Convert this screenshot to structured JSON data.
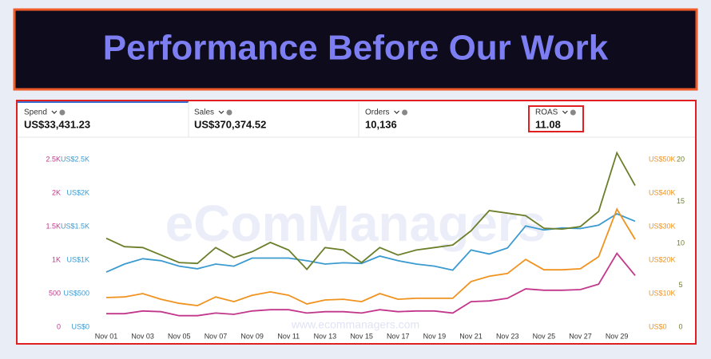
{
  "header": {
    "title": "Performance Before Our Work"
  },
  "watermark": {
    "brand": "eComManagers",
    "url": "www.ecommanagers.com"
  },
  "metrics": [
    {
      "label": "Spend",
      "value": "US$33,431.23"
    },
    {
      "label": "Sales",
      "value": "US$370,374.52"
    },
    {
      "label": "Orders",
      "value": "10,136"
    },
    {
      "label": "ROAS",
      "value": "11.08"
    }
  ],
  "chart_data": {
    "type": "line",
    "categories": [
      "Nov 01",
      null,
      "Nov 03",
      null,
      "Nov 05",
      null,
      "Nov 07",
      null,
      "Nov 09",
      null,
      "Nov 11",
      null,
      "Nov 13",
      null,
      "Nov 15",
      null,
      "Nov 17",
      null,
      "Nov 19",
      null,
      "Nov 21",
      null,
      "Nov 23",
      null,
      "Nov 25",
      null,
      "Nov 27",
      null,
      "Nov 29",
      null
    ],
    "series": [
      {
        "color": "#3b9ad0",
        "axis": "y3",
        "values": [
          820,
          940,
          1020,
          990,
          910,
          870,
          940,
          910,
          1030,
          1030,
          1030,
          990,
          940,
          960,
          950,
          1060,
          990,
          940,
          910,
          850,
          1150,
          1090,
          1180,
          1510,
          1450,
          1480,
          1470,
          1520,
          1690,
          1580
        ]
      },
      {
        "color": "#6b7f2a",
        "axis": "y4",
        "values": [
          10.6,
          9.6,
          9.5,
          8.6,
          7.7,
          7.6,
          9.5,
          8.3,
          9.0,
          10.1,
          9.2,
          6.9,
          9.5,
          9.2,
          7.7,
          9.5,
          8.6,
          9.2,
          9.5,
          9.8,
          11.5,
          13.9,
          13.6,
          13.3,
          11.8,
          11.7,
          12.0,
          13.8,
          20.8,
          16.9
        ]
      },
      {
        "color": "#f0931e",
        "axis": "y2",
        "values": [
          8800,
          9000,
          10000,
          8300,
          7100,
          6400,
          9000,
          7600,
          9500,
          10500,
          9500,
          6900,
          8100,
          8300,
          7600,
          10000,
          8300,
          8600,
          8600,
          8600,
          13600,
          15200,
          16000,
          20200,
          17100,
          17100,
          17400,
          21000,
          35200,
          26200
        ]
      },
      {
        "color": "#c2378c",
        "axis": "y",
        "values": [
          200,
          200,
          240,
          230,
          170,
          170,
          210,
          190,
          240,
          260,
          260,
          210,
          230,
          230,
          210,
          260,
          230,
          240,
          240,
          210,
          380,
          390,
          430,
          570,
          550,
          550,
          560,
          640,
          1100,
          770
        ]
      }
    ],
    "ylim": [
      0,
      2500
    ],
    "yticks": [
      0,
      500,
      {
        "value": 1000,
        "label": "1K"
      },
      {
        "value": 1500,
        "label": "1.5K"
      },
      {
        "value": 2000,
        "label": "2K"
      },
      {
        "value": 2500,
        "label": "2.5K"
      }
    ],
    "ycolor": "#c2378c",
    "y3lim": [
      0,
      2500
    ],
    "y3ticks": [
      {
        "value": 0,
        "label": "US$0"
      },
      {
        "value": 500,
        "label": "US$500"
      },
      {
        "value": 1000,
        "label": "US$1K"
      },
      {
        "value": 1500,
        "label": "US$1.5K"
      },
      {
        "value": 2000,
        "label": "US$2K"
      },
      {
        "value": 2500,
        "label": "US$2.5K"
      }
    ],
    "y3color": "#3b9ad0",
    "y2lim": [
      0,
      50000
    ],
    "y2ticks": [
      {
        "value": 0,
        "label": "US$0"
      },
      {
        "value": 10000,
        "label": "US$10K"
      },
      {
        "value": 20000,
        "label": "US$20K"
      },
      {
        "value": 30000,
        "label": "US$30K"
      },
      {
        "value": 40000,
        "label": "US$40K"
      },
      {
        "value": 50000,
        "label": "US$50K"
      }
    ],
    "y2color": "#f0931e",
    "y4lim": [
      0,
      20
    ],
    "y4ticks": [
      0,
      5,
      10,
      15,
      20
    ],
    "y4color": "#6b7f2a",
    "grid": false
  }
}
